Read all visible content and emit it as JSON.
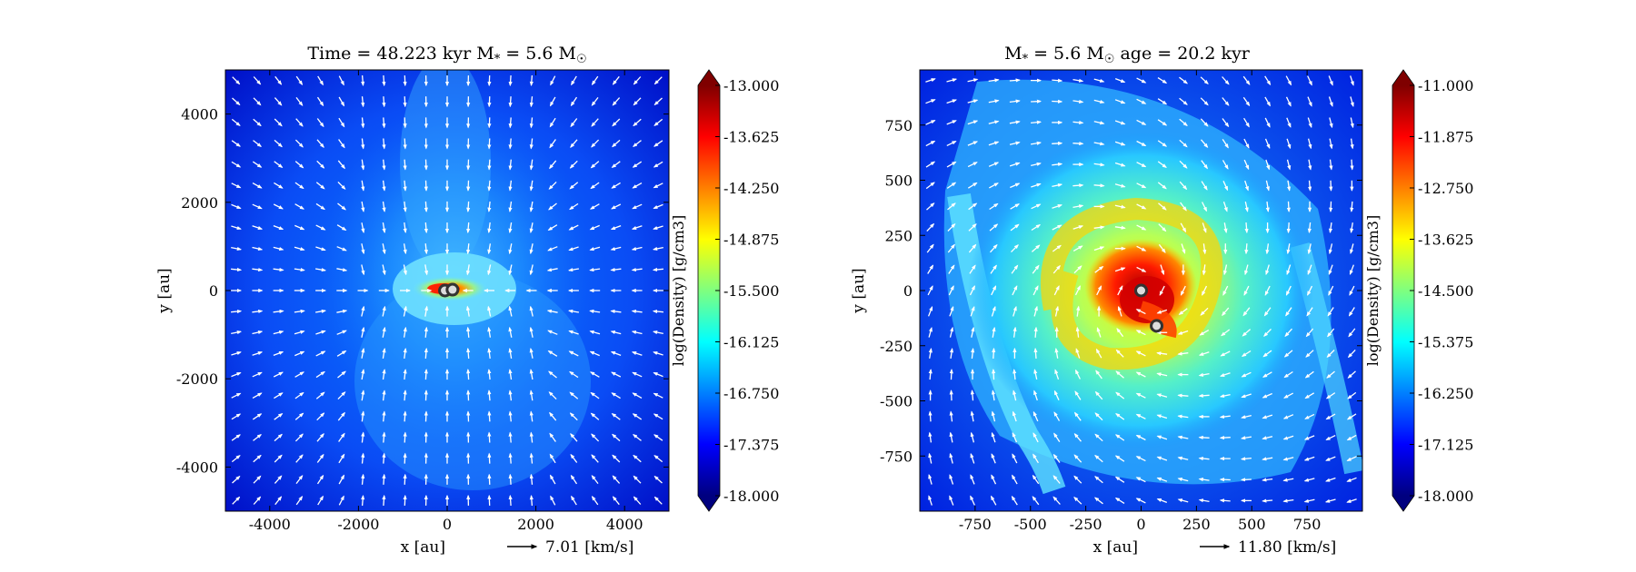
{
  "chart_data": [
    {
      "type": "heatmap",
      "title_left": "Time = 48.223 kyr",
      "title_right": "M* = 5.6 M☉",
      "title_left_parts": [
        "Time = 48.223 kyr"
      ],
      "title_mass_prefix": "M",
      "title_mass_sub": "*",
      "title_mass_value": " = 5.6 M",
      "title_mass_sun": "☉",
      "xlabel": "x [au]",
      "ylabel": "y [au]",
      "xlim": [
        -5000,
        5000
      ],
      "ylim": [
        -5000,
        5000
      ],
      "xticks": [
        -4000,
        -2000,
        0,
        2000,
        4000
      ],
      "yticks": [
        -4000,
        -2000,
        0,
        2000,
        4000
      ],
      "xtick_labels": [
        "-4000",
        "-2000",
        "0",
        "2000",
        "4000"
      ],
      "ytick_labels": [
        "-4000",
        "-2000",
        "0",
        "2000",
        "4000"
      ],
      "quiver_key": "7.01 [km/s]",
      "colorbar": {
        "label": "log(Density) [g/cm3]",
        "min": -18.0,
        "max": -13.0,
        "ticks": [
          -13.0,
          -13.625,
          -14.25,
          -14.875,
          -15.5,
          -16.125,
          -16.75,
          -17.375,
          -18.0
        ],
        "tick_labels": [
          "-13.000",
          "-13.625",
          "-14.250",
          "-14.875",
          "-15.500",
          "-16.125",
          "-16.750",
          "-17.375",
          "-18.000"
        ]
      },
      "stars": [
        [
          -50,
          0
        ],
        [
          120,
          20
        ]
      ]
    },
    {
      "type": "heatmap",
      "title_mass_prefix": "M",
      "title_mass_sub": "*",
      "title_mass_value": " = 5.6 M",
      "title_mass_sun": "☉",
      "title_age": "age = 20.2 kyr",
      "xlabel": "x [au]",
      "ylabel": "y [au]",
      "xlim": [
        -1000,
        1000
      ],
      "ylim": [
        -1000,
        1000
      ],
      "xticks": [
        -750,
        -500,
        -250,
        0,
        250,
        500,
        750
      ],
      "yticks": [
        -750,
        -500,
        -250,
        0,
        250,
        500,
        750
      ],
      "xtick_labels": [
        "-750",
        "-500",
        "-250",
        "0",
        "250",
        "500",
        "750"
      ],
      "ytick_labels": [
        "-750",
        "-500",
        "-250",
        "0",
        "250",
        "500",
        "750"
      ],
      "quiver_key": "11.80 [km/s]",
      "colorbar": {
        "label": "log(Density) [g/cm3]",
        "min": -18.0,
        "max": -11.0,
        "ticks": [
          -11.0,
          -11.875,
          -12.75,
          -13.625,
          -14.5,
          -15.375,
          -16.25,
          -17.125,
          -18.0
        ],
        "tick_labels": [
          "-11.000",
          "-11.875",
          "-12.750",
          "-13.625",
          "-14.500",
          "-15.375",
          "-16.250",
          "-17.125",
          "-18.000"
        ]
      },
      "stars": [
        [
          0,
          0
        ],
        [
          70,
          -160
        ]
      ]
    }
  ],
  "colors": {
    "jet": [
      "#00007f",
      "#0000ff",
      "#007fff",
      "#00ffff",
      "#7fff7f",
      "#ffff00",
      "#ff7f00",
      "#ff0000",
      "#7f0000"
    ],
    "arrow": "#ffffff",
    "star_fill": "#dddddd",
    "star_ring": "#333333"
  }
}
